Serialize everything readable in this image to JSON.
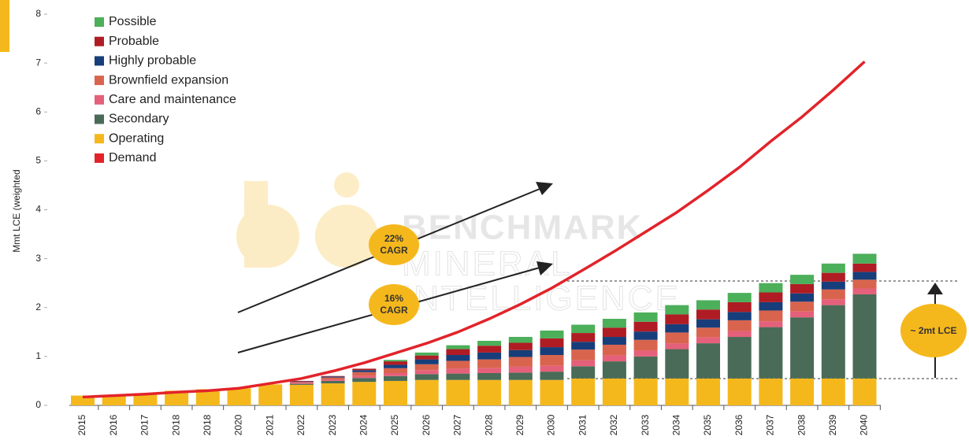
{
  "chart_data": {
    "type": "bar",
    "ylabel": "Mmt LCE (weighted",
    "categories": [
      "2015",
      "2016",
      "2017",
      "2018",
      "2018",
      "2020",
      "2021",
      "2022",
      "2023",
      "2024",
      "2025",
      "2026",
      "2027",
      "2028",
      "2029",
      "2030",
      "2031",
      "2032",
      "2033",
      "2034",
      "2035",
      "2036",
      "2037",
      "2038",
      "2039",
      "2040"
    ],
    "ylim": [
      0,
      8
    ],
    "yticks": [
      0,
      1,
      2,
      3,
      4,
      5,
      6,
      7,
      8
    ],
    "series": [
      {
        "name": "Possible",
        "color": "#4caf5a",
        "values": [
          0,
          0,
          0,
          0,
          0,
          0,
          0,
          0,
          0,
          0,
          0.03,
          0.06,
          0.08,
          0.1,
          0.12,
          0.16,
          0.17,
          0.18,
          0.19,
          0.19,
          0.19,
          0.19,
          0.19,
          0.19,
          0.19,
          0.2
        ]
      },
      {
        "name": "Probable",
        "color": "#b01c24",
        "values": [
          0,
          0,
          0,
          0,
          0,
          0,
          0,
          0.01,
          0.01,
          0.03,
          0.07,
          0.08,
          0.12,
          0.14,
          0.15,
          0.18,
          0.18,
          0.19,
          0.2,
          0.2,
          0.2,
          0.2,
          0.2,
          0.19,
          0.18,
          0.17
        ]
      },
      {
        "name": "Highly probable",
        "color": "#173e7a",
        "values": [
          0,
          0,
          0,
          0,
          0,
          0,
          0,
          0.01,
          0.02,
          0.04,
          0.07,
          0.1,
          0.12,
          0.14,
          0.14,
          0.16,
          0.16,
          0.16,
          0.17,
          0.17,
          0.17,
          0.17,
          0.17,
          0.17,
          0.16,
          0.16
        ]
      },
      {
        "name": "Brownfield expansion",
        "color": "#d9644e",
        "values": [
          0,
          0,
          0,
          0,
          0,
          0,
          0,
          0.02,
          0.04,
          0.07,
          0.1,
          0.12,
          0.16,
          0.18,
          0.2,
          0.22,
          0.22,
          0.22,
          0.22,
          0.22,
          0.2,
          0.22,
          0.22,
          0.2,
          0.2,
          0.18
        ]
      },
      {
        "name": "Care and maintenance",
        "color": "#e5607a",
        "values": [
          0,
          0,
          0,
          0,
          0,
          0,
          0,
          0.02,
          0.03,
          0.05,
          0.06,
          0.08,
          0.1,
          0.1,
          0.12,
          0.12,
          0.12,
          0.12,
          0.12,
          0.12,
          0.12,
          0.12,
          0.12,
          0.12,
          0.12,
          0.12
        ]
      },
      {
        "name": "Secondary",
        "color": "#4a6b58",
        "values": [
          0,
          0,
          0,
          0,
          0,
          0,
          0,
          0.02,
          0.05,
          0.08,
          0.1,
          0.12,
          0.13,
          0.14,
          0.15,
          0.17,
          0.25,
          0.35,
          0.45,
          0.6,
          0.72,
          0.85,
          1.05,
          1.25,
          1.5,
          1.72
        ]
      },
      {
        "name": "Operating",
        "color": "#f5b81c",
        "values": [
          0.2,
          0.2,
          0.25,
          0.3,
          0.33,
          0.35,
          0.43,
          0.42,
          0.45,
          0.48,
          0.5,
          0.52,
          0.52,
          0.52,
          0.52,
          0.52,
          0.55,
          0.55,
          0.55,
          0.55,
          0.55,
          0.55,
          0.55,
          0.55,
          0.55,
          0.55
        ]
      },
      {
        "name": "Demand",
        "type": "line",
        "color": "#e2232a",
        "values": [
          0.17,
          0.2,
          0.23,
          0.27,
          0.3,
          0.35,
          0.45,
          0.55,
          0.7,
          0.87,
          1.07,
          1.27,
          1.5,
          1.77,
          2.07,
          2.4,
          2.77,
          3.15,
          3.55,
          3.95,
          4.4,
          4.87,
          5.4,
          5.9,
          6.45,
          7.03
        ]
      }
    ],
    "annotations": [
      "22%",
      "CAGR",
      "16%",
      "CAGR",
      "~ 2mt LCE"
    ],
    "watermark": [
      "BENCHMARK",
      "MINERAL",
      "INTELLIGENCE"
    ]
  }
}
